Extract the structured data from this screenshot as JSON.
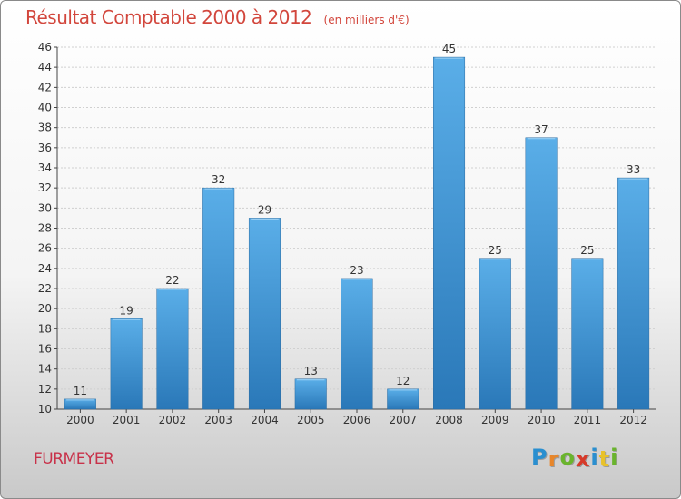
{
  "chart_title": "Résultat Comptable 2000 à 2012",
  "chart_subtitle": "(en milliers d'€)",
  "commune_name": "FURMEYER",
  "logo": {
    "text": "Proxiti",
    "letters": [
      "P",
      "r",
      "o",
      "x",
      "i",
      "t",
      "i"
    ],
    "letter_colors": [
      "#2a8fd0",
      "#e8862a",
      "#6ab42d",
      "#d63a2a",
      "#2a8fd0",
      "#e8c22a",
      "#6ab42d"
    ]
  },
  "colors": {
    "bar_light": "#5aaee8",
    "bar_dark": "#2a78b8",
    "grid": "#d0d0d0",
    "axis": "#444444",
    "accent": "#d2463c"
  },
  "chart_data": {
    "type": "bar",
    "title": "Résultat Comptable 2000 à 2012",
    "subtitle": "(en milliers d'€)",
    "xlabel": "",
    "ylabel": "",
    "categories": [
      "2000",
      "2001",
      "2002",
      "2003",
      "2004",
      "2005",
      "2006",
      "2007",
      "2008",
      "2009",
      "2010",
      "2011",
      "2012"
    ],
    "values": [
      11,
      19,
      22,
      32,
      29,
      13,
      23,
      12,
      45,
      25,
      37,
      25,
      33
    ],
    "ylim": [
      10,
      46
    ],
    "yticks": [
      10,
      12,
      14,
      16,
      18,
      20,
      22,
      24,
      26,
      28,
      30,
      32,
      34,
      36,
      38,
      40,
      42,
      44,
      46
    ],
    "grid": true,
    "data_labels": true
  }
}
